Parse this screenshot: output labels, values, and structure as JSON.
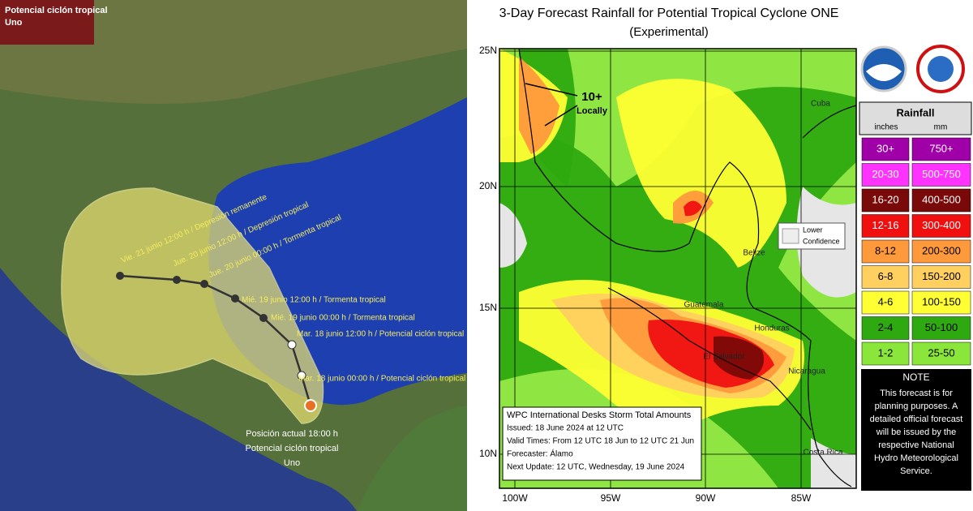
{
  "left_panel": {
    "title": [
      "Potencial ciclón tropical",
      "Uno"
    ],
    "track_labels": [
      "Vie. 21 junio 12:00 h / Depresión remanente",
      "Jue. 20 junio 12:00 h / Depresión tropical",
      "Jue. 20 junio 00:00 h / Tormenta tropical",
      "Mié. 19 junio 12:00 h / Tormenta tropical",
      "Mié. 19 junio 00:00 h / Tormenta tropical",
      "Mar. 18 junio 12:00 h / Potencial ciclón tropical",
      "Mar. 18 junio 00:00 h / Potencial ciclón tropical"
    ],
    "current_position": [
      "Posición actual 18:00 h",
      "Potencial ciclón tropical",
      "Uno"
    ]
  },
  "right_panel": {
    "title": "3-Day Forecast Rainfall for Potential Tropical Cyclone ONE",
    "subtitle": "(Experimental)",
    "lat_labels": [
      "25N",
      "20N",
      "15N",
      "10N"
    ],
    "lon_labels": [
      "100W",
      "95W",
      "90W",
      "85W"
    ],
    "annotation": "10+",
    "annotation_sub": "Locally",
    "lower_confidence": [
      "Lower",
      "Confidence"
    ],
    "countries": [
      "Cuba",
      "Belize",
      "Guatemala",
      "Honduras",
      "El Salvador",
      "Nicaragua",
      "Costa Rica"
    ],
    "info_box": {
      "title": "WPC International Desks Storm Total Amounts",
      "lines": [
        "Issued:  18 June 2024 at 12 UTC",
        "Valid Times:  From 12 UTC 18 Jun  to 12 UTC 21 Jun",
        "Forecaster: Álamo",
        "Next Update: 12 UTC, Wednesday, 19 June 2024"
      ]
    },
    "legend": {
      "title": "Rainfall",
      "units": [
        "inches",
        "mm"
      ],
      "rows": [
        {
          "inches": "30+",
          "mm": "750+",
          "color": "#a000a8"
        },
        {
          "inches": "20-30",
          "mm": "500-750",
          "color": "#ff33ff"
        },
        {
          "inches": "16-20",
          "mm": "400-500",
          "color": "#7a0a0a"
        },
        {
          "inches": "12-16",
          "mm": "300-400",
          "color": "#f01010"
        },
        {
          "inches": "8-12",
          "mm": "200-300",
          "color": "#ff9a3c"
        },
        {
          "inches": "6-8",
          "mm": "150-200",
          "color": "#ffd060"
        },
        {
          "inches": "4-6",
          "mm": "100-150",
          "color": "#ffff33"
        },
        {
          "inches": "2-4",
          "mm": "50-100",
          "color": "#2eaa10"
        },
        {
          "inches": "1-2",
          "mm": "25-50",
          "color": "#8ae63a"
        }
      ]
    },
    "note": {
      "title": "NOTE",
      "lines": [
        "This forecast is for",
        "planning purposes. A",
        "detailed official forecast",
        "will be issued by the",
        "respective National",
        "Hydro Meteorological",
        "Service."
      ]
    }
  }
}
